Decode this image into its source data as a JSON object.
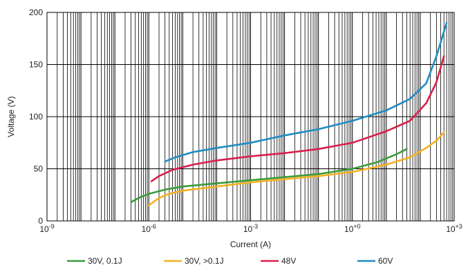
{
  "chart_data": {
    "type": "line",
    "title": "",
    "xlabel": "Current (A)",
    "ylabel": "Voltage (V)",
    "x_scale": "log",
    "xlim": [
      1e-09,
      1000
    ],
    "ylim": [
      0,
      200
    ],
    "x_tick_labels": [
      {
        "value": 1e-09,
        "base": "10",
        "exp": "-9"
      },
      {
        "value": 1e-06,
        "base": "10",
        "exp": "-6"
      },
      {
        "value": 0.001,
        "base": "10",
        "exp": "-3"
      },
      {
        "value": 1,
        "base": "10",
        "exp": "+0"
      },
      {
        "value": 1000,
        "base": "10",
        "exp": "+3"
      }
    ],
    "y_ticks": [
      0,
      50,
      100,
      150,
      200
    ],
    "grid": true,
    "legend_position": "bottom",
    "series": [
      {
        "name": "30V, 0.1J",
        "color": "#3a9b3a",
        "points": [
          [
            3e-07,
            18
          ],
          [
            5e-07,
            22
          ],
          [
            1e-06,
            26
          ],
          [
            3e-06,
            30
          ],
          [
            1e-05,
            33
          ],
          [
            0.0001,
            36
          ],
          [
            0.001,
            39
          ],
          [
            0.01,
            42
          ],
          [
            0.1,
            45
          ],
          [
            1,
            50
          ],
          [
            5,
            56
          ],
          [
            20,
            64
          ],
          [
            40,
            69
          ]
        ]
      },
      {
        "name": "30V, >0.1J",
        "color": "#f5b021",
        "points": [
          [
            1e-06,
            15
          ],
          [
            2e-06,
            22
          ],
          [
            4e-06,
            26
          ],
          [
            1e-05,
            29
          ],
          [
            0.0001,
            33
          ],
          [
            0.001,
            37
          ],
          [
            0.01,
            40
          ],
          [
            0.1,
            43
          ],
          [
            1,
            47
          ],
          [
            10,
            54
          ],
          [
            50,
            61
          ],
          [
            150,
            70
          ],
          [
            300,
            77
          ],
          [
            500,
            85
          ]
        ]
      },
      {
        "name": "48V",
        "color": "#d81f4a",
        "points": [
          [
            1.2e-06,
            38
          ],
          [
            2e-06,
            43
          ],
          [
            5e-06,
            49
          ],
          [
            2e-05,
            54
          ],
          [
            0.0001,
            58
          ],
          [
            0.001,
            62
          ],
          [
            0.01,
            65
          ],
          [
            0.1,
            69
          ],
          [
            1,
            75
          ],
          [
            10,
            86
          ],
          [
            50,
            96
          ],
          [
            150,
            113
          ],
          [
            300,
            133
          ],
          [
            500,
            158
          ]
        ]
      },
      {
        "name": "60V",
        "color": "#1f8bc2",
        "points": [
          [
            3e-06,
            57
          ],
          [
            6e-06,
            61
          ],
          [
            2e-05,
            66
          ],
          [
            0.0001,
            70
          ],
          [
            0.001,
            75
          ],
          [
            0.01,
            82
          ],
          [
            0.1,
            88
          ],
          [
            1,
            96
          ],
          [
            10,
            106
          ],
          [
            50,
            117
          ],
          [
            150,
            132
          ],
          [
            300,
            158
          ],
          [
            600,
            190
          ]
        ]
      }
    ]
  }
}
